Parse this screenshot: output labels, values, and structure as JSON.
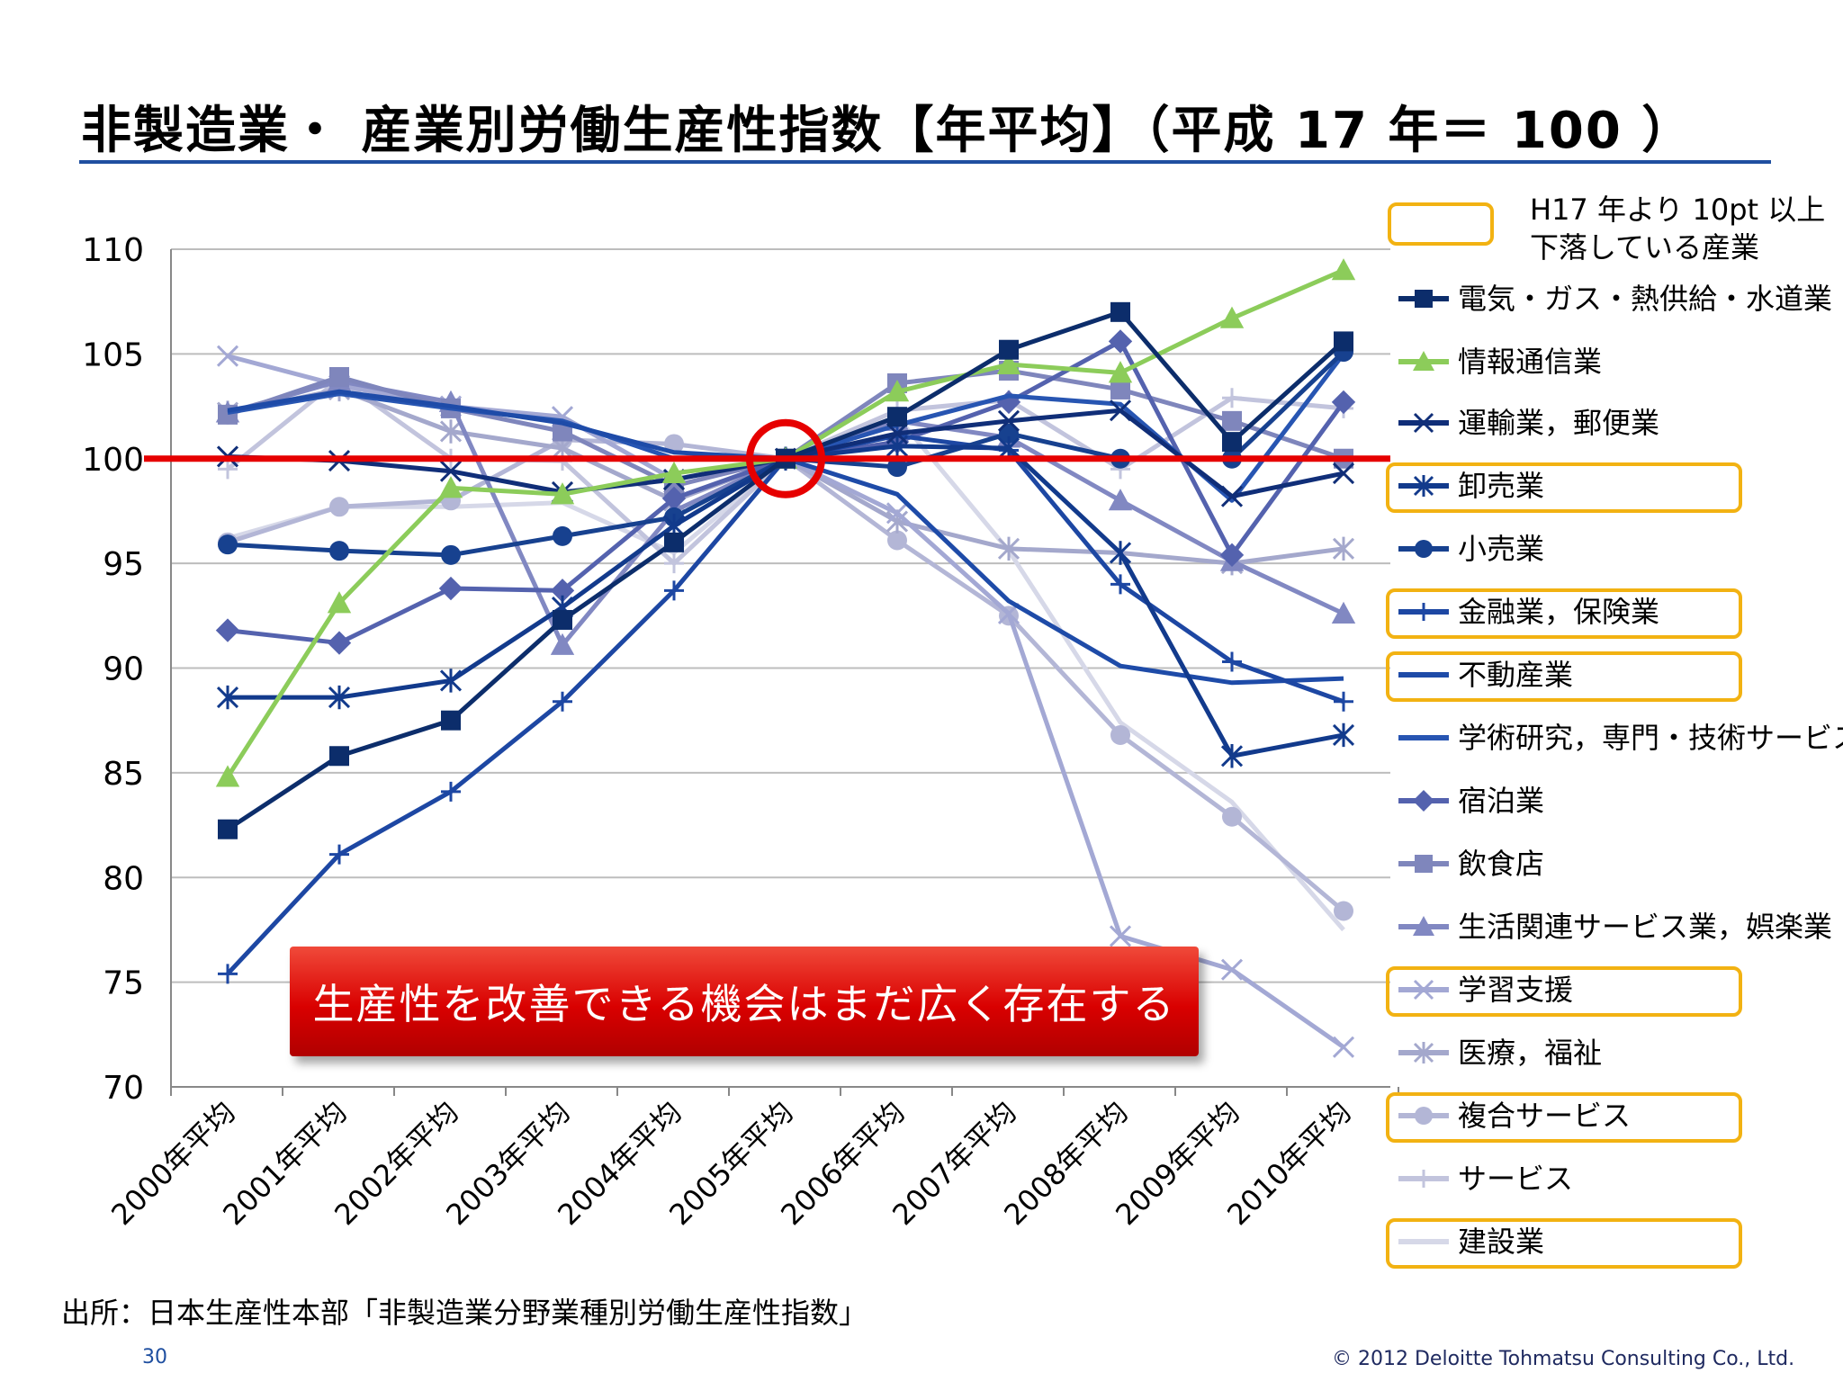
{
  "title": "非製造業・ 産業別労働生産性指数【年平均】（平成 17 年＝ 100 ）",
  "note": "H17 年より 10pt 以上下落している産業",
  "banner": "生産性を改善できる機会はまだ広く存在する",
  "source": "出所：日本生産性本部「非製造業分野業種別労働生産性指数」",
  "page_number": "30",
  "copyright": "© 2012 Deloitte Tohmatsu Consulting Co., Ltd.",
  "colors": {
    "highlight": "#f2b212",
    "reference_line": "#e60000",
    "circle": "#e60000",
    "title_rule": "#1f4fa0"
  },
  "chart_data": {
    "type": "line",
    "categories": [
      "2000年平均",
      "2001年平均",
      "2002年平均",
      "2003年平均",
      "2004年平均",
      "2005年平均",
      "2006年平均",
      "2007年平均",
      "2008年平均",
      "2009年平均",
      "2010年平均"
    ],
    "ylim": [
      70,
      110
    ],
    "yticks": [
      70,
      75,
      80,
      85,
      90,
      95,
      100,
      105,
      110
    ],
    "reference_value": 100,
    "grid": true,
    "legend_position": "right",
    "series": [
      {
        "name": "電気・ガス・熱供給・水道業",
        "color": "#0c2d6b",
        "marker": "square",
        "highlighted": false,
        "values": [
          82.3,
          85.8,
          87.5,
          92.3,
          96.0,
          100,
          102.0,
          105.2,
          107.0,
          100.8,
          105.6
        ]
      },
      {
        "name": "情報通信業",
        "color": "#8ccc5a",
        "marker": "triangle",
        "highlighted": false,
        "values": [
          84.8,
          93.1,
          98.6,
          98.3,
          99.3,
          100,
          103.2,
          104.5,
          104.1,
          106.7,
          109.0
        ]
      },
      {
        "name": "運輸業，郵便業",
        "color": "#102e78",
        "marker": "x",
        "highlighted": false,
        "values": [
          100.1,
          99.9,
          99.4,
          98.4,
          99.0,
          100,
          101.2,
          101.8,
          102.3,
          98.2,
          99.3
        ]
      },
      {
        "name": "卸売業",
        "color": "#123a8c",
        "marker": "asterisk",
        "highlighted": true,
        "values": [
          88.6,
          88.6,
          89.4,
          92.9,
          96.8,
          100,
          100.6,
          100.5,
          95.5,
          85.8,
          86.8
        ]
      },
      {
        "name": "小売業",
        "color": "#17418f",
        "marker": "circle",
        "highlighted": false,
        "values": [
          95.9,
          95.6,
          95.4,
          96.3,
          97.2,
          100,
          99.6,
          101.2,
          100.0,
          100.0,
          105.1
        ]
      },
      {
        "name": "金融業，保険業",
        "color": "#1d47a3",
        "marker": "plus",
        "highlighted": true,
        "values": [
          75.4,
          81.1,
          84.1,
          88.4,
          93.7,
          100,
          101.1,
          100.4,
          94.0,
          90.3,
          88.4
        ]
      },
      {
        "name": "不動産業",
        "color": "#1e4ba8",
        "marker": "none",
        "highlighted": true,
        "values": [
          102.3,
          103.2,
          102.5,
          101.7,
          100.3,
          100,
          98.3,
          93.2,
          90.1,
          89.3,
          89.5
        ]
      },
      {
        "name": "学術研究，専門・技術サービス業",
        "color": "#2755b2",
        "marker": "none",
        "highlighted": false,
        "values": [
          102.2,
          103.1,
          102.4,
          101.8,
          100.0,
          100,
          101.6,
          103.0,
          102.6,
          98.0,
          105.0
        ]
      },
      {
        "name": "宿泊業",
        "color": "#5462ae",
        "marker": "diamond",
        "highlighted": false,
        "values": [
          91.8,
          91.2,
          93.8,
          93.7,
          98.1,
          100,
          100.8,
          102.7,
          105.6,
          95.4,
          102.7
        ]
      },
      {
        "name": "飲食店",
        "color": "#7f86bc",
        "marker": "square",
        "highlighted": false,
        "values": [
          102.1,
          103.9,
          102.4,
          101.3,
          98.7,
          100,
          103.6,
          104.2,
          103.3,
          101.8,
          100.0
        ]
      },
      {
        "name": "生活関連サービス業，娯楽業",
        "color": "#8188c2",
        "marker": "triangle",
        "highlighted": false,
        "values": [
          102.2,
          103.7,
          102.7,
          91.1,
          97.5,
          100,
          101.8,
          101.0,
          98.0,
          95.1,
          92.6
        ]
      },
      {
        "name": "学習支援",
        "color": "#a3a8d4",
        "marker": "x",
        "highlighted": true,
        "values": [
          104.9,
          103.5,
          102.5,
          102.0,
          99.0,
          100,
          97.4,
          92.6,
          77.2,
          75.6,
          71.9
        ]
      },
      {
        "name": "医療，福祉",
        "color": "#a4a8cc",
        "marker": "asterisk",
        "highlighted": false,
        "values": [
          102.2,
          103.3,
          101.3,
          100.5,
          98.0,
          100,
          97.0,
          95.7,
          95.5,
          95.0,
          95.7
        ]
      },
      {
        "name": "複合サービス",
        "color": "#b3b6d6",
        "marker": "circle",
        "highlighted": true,
        "values": [
          96.0,
          97.7,
          98.0,
          100.9,
          100.7,
          100,
          96.1,
          92.5,
          86.8,
          82.9,
          78.4
        ]
      },
      {
        "name": "サービス",
        "color": "#c2c4dd",
        "marker": "plus",
        "highlighted": false,
        "values": [
          99.5,
          103.8,
          100.0,
          99.9,
          95.0,
          100,
          102.3,
          102.8,
          99.5,
          102.9,
          102.4
        ]
      },
      {
        "name": "建設業",
        "color": "#d6d8e8",
        "marker": "none",
        "highlighted": true,
        "values": [
          96.2,
          97.7,
          97.7,
          97.9,
          95.5,
          100,
          102.0,
          95.6,
          87.4,
          83.6,
          77.5
        ]
      }
    ]
  }
}
